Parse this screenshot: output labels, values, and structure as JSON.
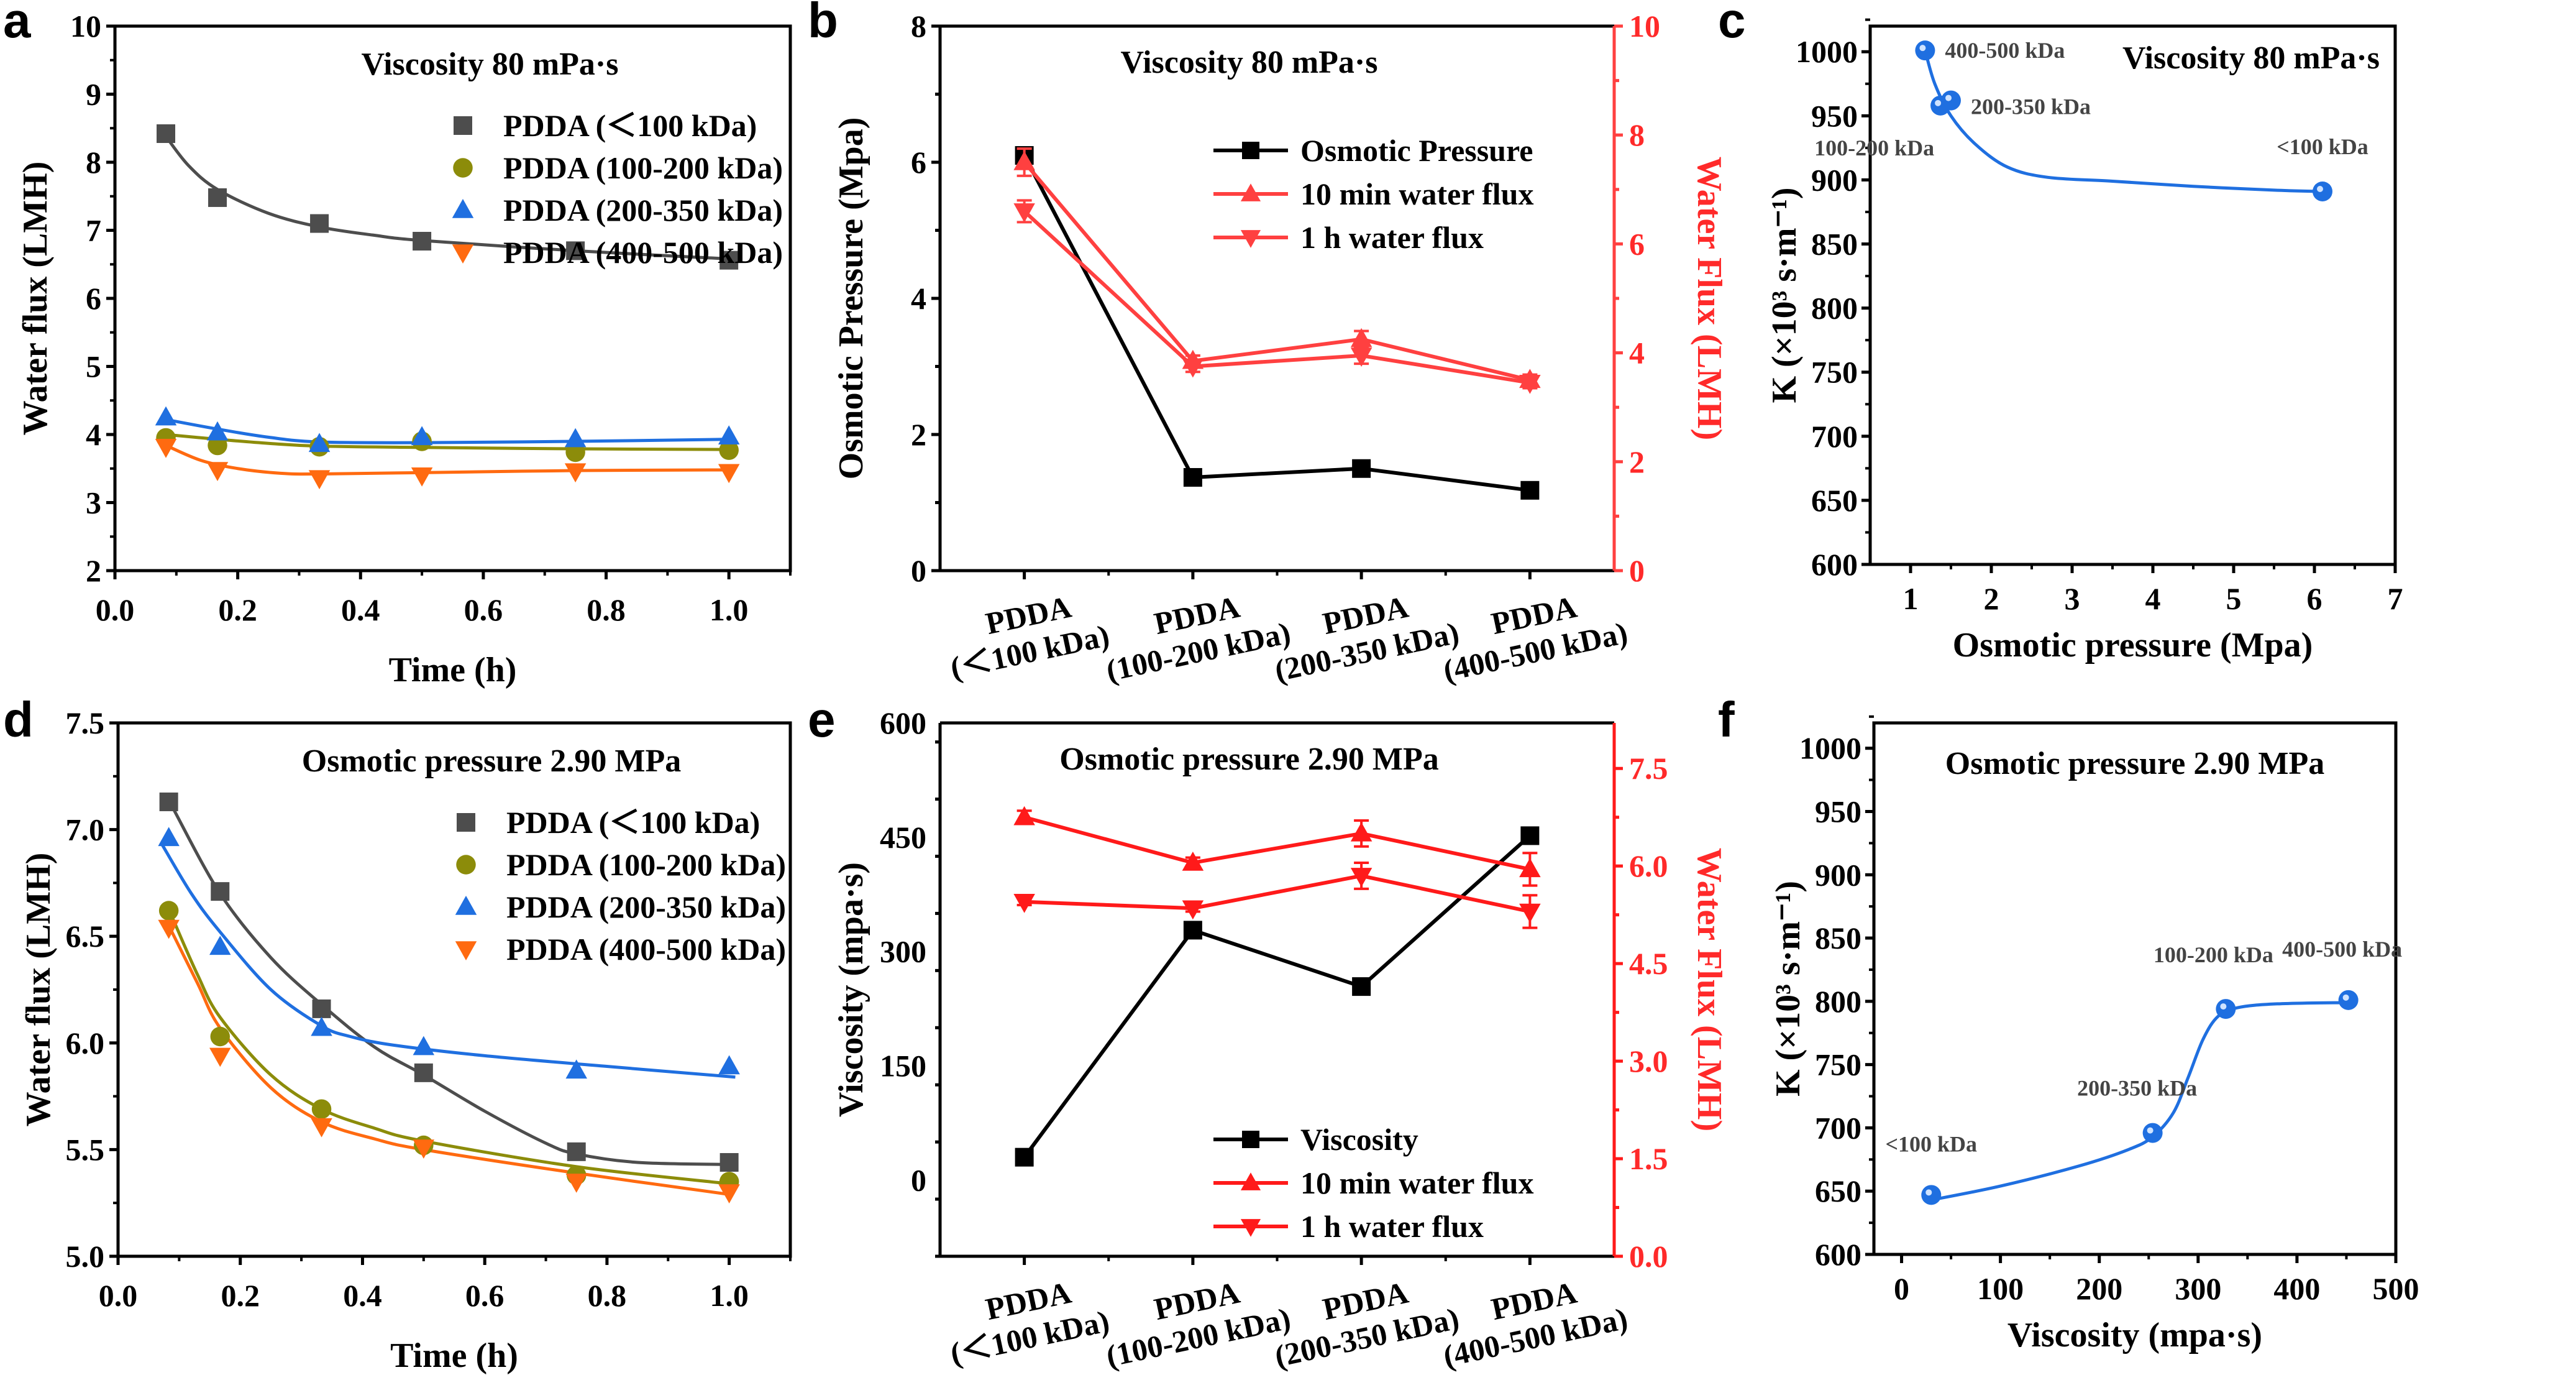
{
  "chart_data": [
    {
      "panel": "a",
      "type": "scatter",
      "title": "Viscosity 80 mPa·s",
      "xlabel": "Time (h)",
      "ylabel": "Water flux (LMH)",
      "xlim": [
        0.0,
        1.1
      ],
      "ylim": [
        2,
        10
      ],
      "xticks": [
        "0.0",
        "0.2",
        "0.4",
        "0.6",
        "0.8",
        "1.0"
      ],
      "yticks": [
        "2",
        "3",
        "4",
        "5",
        "6",
        "7",
        "8",
        "9",
        "10"
      ],
      "legend_position": "top-right",
      "x": [
        0.083,
        0.167,
        0.333,
        0.5,
        0.75,
        1.0
      ],
      "series": [
        {
          "name": "PDDA (＜100 kDa)",
          "marker": "square",
          "color": "#4d4d4d",
          "values": [
            8.42,
            7.48,
            7.1,
            6.84,
            6.7,
            6.56
          ]
        },
        {
          "name": "PDDA (100-200 kDa)",
          "marker": "circle",
          "color": "#8c8c0a",
          "values": [
            3.95,
            3.84,
            3.82,
            3.9,
            3.74,
            3.77
          ]
        },
        {
          "name": "PDDA (200-350 kDa)",
          "marker": "triangle-up",
          "color": "#1f6fe0",
          "values": [
            4.25,
            4.03,
            3.86,
            3.96,
            3.93,
            3.97
          ]
        },
        {
          "name": "PDDA (400-500 kDa)",
          "marker": "triangle-down",
          "color": "#ff6a10",
          "values": [
            3.82,
            3.48,
            3.36,
            3.4,
            3.46,
            3.45
          ]
        }
      ],
      "fits": [
        {
          "color": "#4d4d4d",
          "points": [
            [
              0.083,
              8.38
            ],
            [
              0.12,
              7.95
            ],
            [
              0.167,
              7.6
            ],
            [
              0.25,
              7.25
            ],
            [
              0.333,
              7.05
            ],
            [
              0.42,
              6.93
            ],
            [
              0.5,
              6.85
            ],
            [
              0.75,
              6.7
            ],
            [
              1.0,
              6.58
            ]
          ]
        },
        {
          "color": "#8c8c0a",
          "points": [
            [
              0.083,
              4.0
            ],
            [
              0.167,
              3.93
            ],
            [
              0.25,
              3.87
            ],
            [
              0.333,
              3.83
            ],
            [
              0.5,
              3.81
            ],
            [
              0.75,
              3.79
            ],
            [
              1.0,
              3.78
            ]
          ]
        },
        {
          "color": "#1f6fe0",
          "points": [
            [
              0.083,
              4.22
            ],
            [
              0.167,
              4.08
            ],
            [
              0.25,
              3.96
            ],
            [
              0.333,
              3.89
            ],
            [
              0.5,
              3.88
            ],
            [
              0.75,
              3.9
            ],
            [
              1.0,
              3.93
            ]
          ]
        },
        {
          "color": "#ff6a10",
          "points": [
            [
              0.083,
              3.84
            ],
            [
              0.14,
              3.62
            ],
            [
              0.2,
              3.5
            ],
            [
              0.27,
              3.43
            ],
            [
              0.333,
              3.42
            ],
            [
              0.5,
              3.44
            ],
            [
              0.75,
              3.47
            ],
            [
              1.0,
              3.48
            ]
          ]
        }
      ]
    },
    {
      "panel": "b",
      "type": "line",
      "title": "Viscosity 80 mPa·s",
      "categories": [
        "PDDA (＜100 kDa)",
        "PDDA (100-200 kDa)",
        "PDDA (200-350 kDa)",
        "PDDA (400-500 kDa)"
      ],
      "ylabel": "Osmotic Pressure (Mpa)",
      "y2label": "Water Flux (LMH)",
      "ylim": [
        0,
        8
      ],
      "y2lim": [
        0,
        10
      ],
      "yticks": [
        "0",
        "2",
        "4",
        "6",
        "8"
      ],
      "y2ticks": [
        "0",
        "2",
        "4",
        "6",
        "8",
        "10"
      ],
      "legend_position": "top-right",
      "series": [
        {
          "name": "Osmotic Pressure",
          "axis": "left",
          "marker": "square",
          "color": "#000000",
          "values": [
            6.1,
            1.37,
            1.5,
            1.18
          ]
        },
        {
          "name": "10 min water flux",
          "axis": "right",
          "marker": "triangle-up",
          "color": "#ff4040",
          "values": [
            7.5,
            3.85,
            4.25,
            3.5
          ],
          "errors": [
            0.25,
            0.1,
            0.15,
            0.1
          ]
        },
        {
          "name": "1 h water flux",
          "axis": "right",
          "marker": "triangle-down",
          "color": "#ff4040",
          "values": [
            6.6,
            3.75,
            3.95,
            3.45
          ],
          "errors": [
            0.2,
            0.1,
            0.15,
            0.1
          ]
        }
      ]
    },
    {
      "panel": "c",
      "type": "scatter",
      "title": "Viscosity 80 mPa·s",
      "xlabel": "Osmotic pressure (Mpa)",
      "ylabel": "K (×10³ s·m⁻¹)",
      "xlim": [
        0.5,
        7
      ],
      "ylim": [
        600,
        1020
      ],
      "xticks": [
        "1",
        "2",
        "3",
        "4",
        "5",
        "6",
        "7"
      ],
      "yticks": [
        "600",
        "650",
        "700",
        "750",
        "800",
        "850",
        "900",
        "950",
        "1000"
      ],
      "points": [
        {
          "label": "400-500 kDa",
          "x": 1.18,
          "y": 1001
        },
        {
          "label": "100-200 kDa",
          "x": 1.37,
          "y": 958
        },
        {
          "label": "200-350 kDa",
          "x": 1.5,
          "y": 962
        },
        {
          "label": "<100 kDa",
          "x": 6.1,
          "y": 891
        }
      ],
      "fit": [
        [
          1.18,
          1001
        ],
        [
          1.3,
          975
        ],
        [
          1.5,
          950
        ],
        [
          1.8,
          928
        ],
        [
          2.2,
          910
        ],
        [
          2.7,
          902
        ],
        [
          3.5,
          899
        ],
        [
          4.5,
          895
        ],
        [
          5.5,
          892
        ],
        [
          6.1,
          891
        ]
      ],
      "color": "#1f6fe0"
    },
    {
      "panel": "d",
      "type": "scatter",
      "title": "Osmotic pressure 2.90 MPa",
      "xlabel": "Time (h)",
      "ylabel": "Water flux (LMH)",
      "xlim": [
        0.0,
        1.1
      ],
      "ylim": [
        5.0,
        7.5
      ],
      "xticks": [
        "0.0",
        "0.2",
        "0.4",
        "0.6",
        "0.8",
        "1.0"
      ],
      "yticks": [
        "5.0",
        "5.5",
        "6.0",
        "6.5",
        "7.0",
        "7.5"
      ],
      "legend_position": "top-right",
      "x": [
        0.083,
        0.167,
        0.333,
        0.5,
        0.75,
        1.0
      ],
      "series": [
        {
          "name": "PDDA (＜100 kDa)",
          "marker": "square",
          "color": "#4d4d4d",
          "values": [
            7.13,
            6.71,
            6.16,
            5.86,
            5.49,
            5.44
          ]
        },
        {
          "name": "PDDA (100-200 kDa)",
          "marker": "circle",
          "color": "#8c8c0a",
          "values": [
            6.62,
            6.03,
            5.69,
            5.52,
            5.38,
            5.35
          ]
        },
        {
          "name": "PDDA (200-350 kDa)",
          "marker": "triangle-up",
          "color": "#1f6fe0",
          "values": [
            6.96,
            6.45,
            6.07,
            5.98,
            5.87,
            5.89
          ]
        },
        {
          "name": "PDDA (400-500 kDa)",
          "marker": "triangle-down",
          "color": "#ff6a10",
          "values": [
            6.54,
            5.94,
            5.61,
            5.51,
            5.35,
            5.3
          ]
        }
      ],
      "fits": [
        {
          "color": "#4d4d4d",
          "points": [
            [
              0.09,
              7.1
            ],
            [
              0.167,
              6.7
            ],
            [
              0.25,
              6.4
            ],
            [
              0.333,
              6.18
            ],
            [
              0.42,
              5.98
            ],
            [
              0.5,
              5.85
            ],
            [
              0.6,
              5.68
            ],
            [
              0.7,
              5.53
            ],
            [
              0.75,
              5.48
            ],
            [
              0.85,
              5.44
            ],
            [
              1.0,
              5.43
            ]
          ]
        },
        {
          "color": "#8c8c0a",
          "points": [
            [
              0.09,
              6.58
            ],
            [
              0.13,
              6.32
            ],
            [
              0.167,
              6.12
            ],
            [
              0.25,
              5.85
            ],
            [
              0.333,
              5.69
            ],
            [
              0.42,
              5.6
            ],
            [
              0.5,
              5.54
            ],
            [
              0.75,
              5.42
            ],
            [
              1.0,
              5.34
            ]
          ]
        },
        {
          "color": "#1f6fe0",
          "points": [
            [
              0.07,
              6.94
            ],
            [
              0.12,
              6.7
            ],
            [
              0.167,
              6.52
            ],
            [
              0.25,
              6.25
            ],
            [
              0.333,
              6.08
            ],
            [
              0.38,
              6.03
            ],
            [
              0.45,
              5.99
            ],
            [
              0.6,
              5.94
            ],
            [
              0.8,
              5.89
            ],
            [
              1.01,
              5.84
            ]
          ]
        },
        {
          "color": "#ff6a10",
          "points": [
            [
              0.083,
              6.55
            ],
            [
              0.13,
              6.28
            ],
            [
              0.167,
              6.07
            ],
            [
              0.25,
              5.79
            ],
            [
              0.333,
              5.63
            ],
            [
              0.42,
              5.55
            ],
            [
              0.5,
              5.5
            ],
            [
              0.75,
              5.39
            ],
            [
              1.0,
              5.29
            ]
          ]
        }
      ]
    },
    {
      "panel": "e",
      "type": "line",
      "title": "Osmotic pressure 2.90 MPa",
      "categories": [
        "PDDA (＜100 kDa)",
        "PDDA (100-200 kDa)",
        "PDDA (200-350 kDa)",
        "PDDA (400-500 kDa)"
      ],
      "ylabel": "Viscosity (mpa·s)",
      "y2label": "Water Flux (LMH)",
      "ylim": [
        -100,
        600
      ],
      "y2lim": [
        0,
        8.2
      ],
      "yticks": [
        "0",
        "150",
        "300",
        "450",
        "600"
      ],
      "y2ticks": [
        "0.0",
        "1.5",
        "3.0",
        "4.5",
        "6.0",
        "7.5"
      ],
      "legend_position": "bottom-right",
      "series": [
        {
          "name": "Viscosity",
          "axis": "left",
          "marker": "square",
          "color": "#000000",
          "values": [
            30,
            328,
            254,
            452
          ]
        },
        {
          "name": "10 min water flux",
          "axis": "right",
          "marker": "triangle-up",
          "color": "#ff1a1a",
          "values": [
            6.75,
            6.05,
            6.5,
            5.95
          ],
          "errors": [
            0.1,
            0.08,
            0.2,
            0.25
          ]
        },
        {
          "name": "1 h water flux",
          "axis": "right",
          "marker": "triangle-down",
          "color": "#ff1a1a",
          "values": [
            5.45,
            5.35,
            5.85,
            5.3
          ],
          "errors": [
            0.05,
            0.05,
            0.2,
            0.25
          ]
        }
      ]
    },
    {
      "panel": "f",
      "type": "scatter",
      "title": "Osmotic pressure 2.90 MPa",
      "xlabel": "Viscosity (mpa·s)",
      "ylabel": "K (×10³ s·m⁻¹)",
      "xlim": [
        -28,
        500
      ],
      "ylim": [
        600,
        1020
      ],
      "xticks": [
        "0",
        "100",
        "200",
        "300",
        "400",
        "500"
      ],
      "yticks": [
        "600",
        "650",
        "700",
        "750",
        "800",
        "850",
        "900",
        "950",
        "1000"
      ],
      "points": [
        {
          "label": "<100 kDa",
          "x": 30,
          "y": 647
        },
        {
          "label": "200-350 kDa",
          "x": 254,
          "y": 696
        },
        {
          "label": "100-200 kDa",
          "x": 328,
          "y": 794
        },
        {
          "label": "400-500 kDa",
          "x": 452,
          "y": 801
        }
      ],
      "fit": [
        [
          30,
          643
        ],
        [
          100,
          654
        ],
        [
          180,
          670
        ],
        [
          230,
          683
        ],
        [
          254,
          693
        ],
        [
          275,
          712
        ],
        [
          290,
          740
        ],
        [
          305,
          770
        ],
        [
          320,
          788
        ],
        [
          340,
          795
        ],
        [
          380,
          798
        ],
        [
          452,
          799
        ]
      ],
      "color": "#1f6fe0"
    }
  ],
  "panel_letters": [
    "a",
    "b",
    "c",
    "d",
    "e",
    "f"
  ]
}
